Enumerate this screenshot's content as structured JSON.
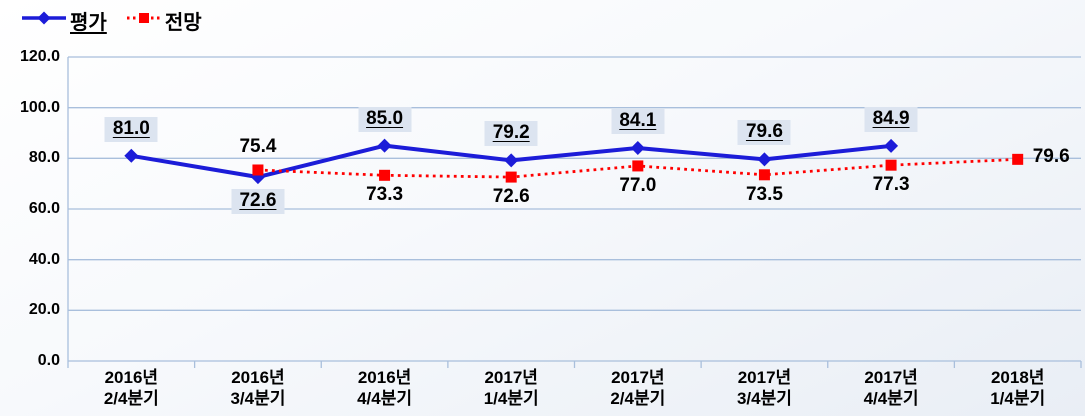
{
  "chart_data": {
    "type": "line",
    "categories": [
      [
        "2016년",
        "2/4분기"
      ],
      [
        "2016년",
        "3/4분기"
      ],
      [
        "2016년",
        "4/4분기"
      ],
      [
        "2017년",
        "1/4분기"
      ],
      [
        "2017년",
        "2/4분기"
      ],
      [
        "2017년",
        "3/4분기"
      ],
      [
        "2017년",
        "4/4분기"
      ],
      [
        "2018년",
        "1/4분기"
      ]
    ],
    "series": [
      {
        "name": "평가",
        "color": "#1c1cd8",
        "marker": "diamond",
        "line": "solid",
        "values": [
          81.0,
          72.6,
          85.0,
          79.2,
          84.1,
          79.6,
          84.9,
          null
        ],
        "label_style": "boxed-underline",
        "label_placement": [
          "above",
          "below",
          "above",
          "above",
          "above",
          "above",
          "above",
          null
        ]
      },
      {
        "name": "전망",
        "color": "#ff0000",
        "marker": "square",
        "line": "dotted",
        "values": [
          null,
          75.4,
          73.3,
          72.6,
          77.0,
          73.5,
          77.3,
          79.6
        ],
        "label_style": "plain",
        "label_placement": [
          null,
          "above",
          "below",
          "below",
          "below",
          "below",
          "below",
          "right"
        ]
      }
    ],
    "y_axis": {
      "min": 0,
      "max": 120,
      "step": 20,
      "tick_labels": [
        "0.0",
        "20.0",
        "40.0",
        "60.0",
        "80.0",
        "100.0",
        "120.0"
      ]
    },
    "grid": true,
    "legend_position": "top-left",
    "title": "",
    "xlabel": "",
    "ylabel": "",
    "colors": {
      "grid": "#a9bfdc",
      "axis": "#a9bfdc",
      "label_box_bg": "#dce4f0",
      "text": "#000000"
    }
  }
}
